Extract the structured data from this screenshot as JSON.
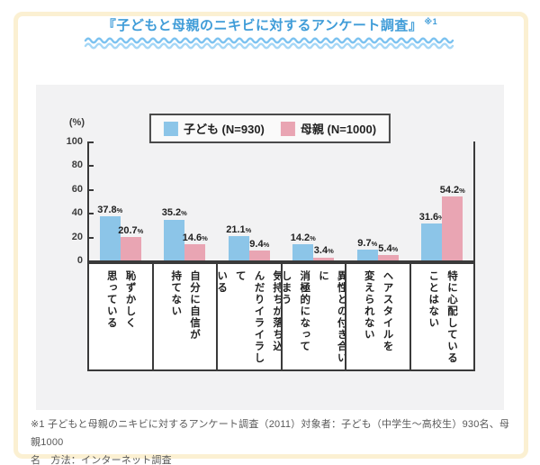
{
  "header": {
    "title": "『子どもと母親のニキビに対するアンケート調査』",
    "title_ref": "※1"
  },
  "colors": {
    "title_blue": "#3f9cd8",
    "wave_top": "#7cc2f0",
    "wave_bottom": "#a6d7f6",
    "frame_cream": "#fbf0d2",
    "panel_gray": "#f2f2f3",
    "axis_dark": "#3a3a3a",
    "child_blue": "#8cc5e8",
    "mother_pink": "#e9a5b3"
  },
  "chart_data": {
    "type": "bar",
    "unit_label": "(%)",
    "value_suffix": "%",
    "categories": [
      "恥ずかしく\n思っている",
      "自分に自信が\n持てない",
      "気持ちが落ち込\nんだりイライラして\nいる",
      "異性との付き合いに\n消極的になって\nしまう",
      "ヘアスタイルを\n変えられない",
      "特に心配している\nことはない"
    ],
    "series": [
      {
        "name": "子ども (N=930)",
        "color": "#8cc5e8",
        "values": [
          37.8,
          35.2,
          21.1,
          14.2,
          9.7,
          31.6
        ]
      },
      {
        "name": "母親 (N=1000)",
        "color": "#e9a5b3",
        "values": [
          20.7,
          14.6,
          9.4,
          3.4,
          5.4,
          54.2
        ]
      }
    ],
    "y_ticks": [
      0,
      20,
      40,
      60,
      80,
      100
    ],
    "ylim": [
      0,
      100
    ],
    "grid": false,
    "legend_position": "top-center"
  },
  "footnote": {
    "lines": [
      "※1 子どもと母親のニキビに対するアンケート調査（2011）対象者：子ども（中学生～高校生）930名、母親1000",
      "名　方法：インターネット調査"
    ]
  }
}
